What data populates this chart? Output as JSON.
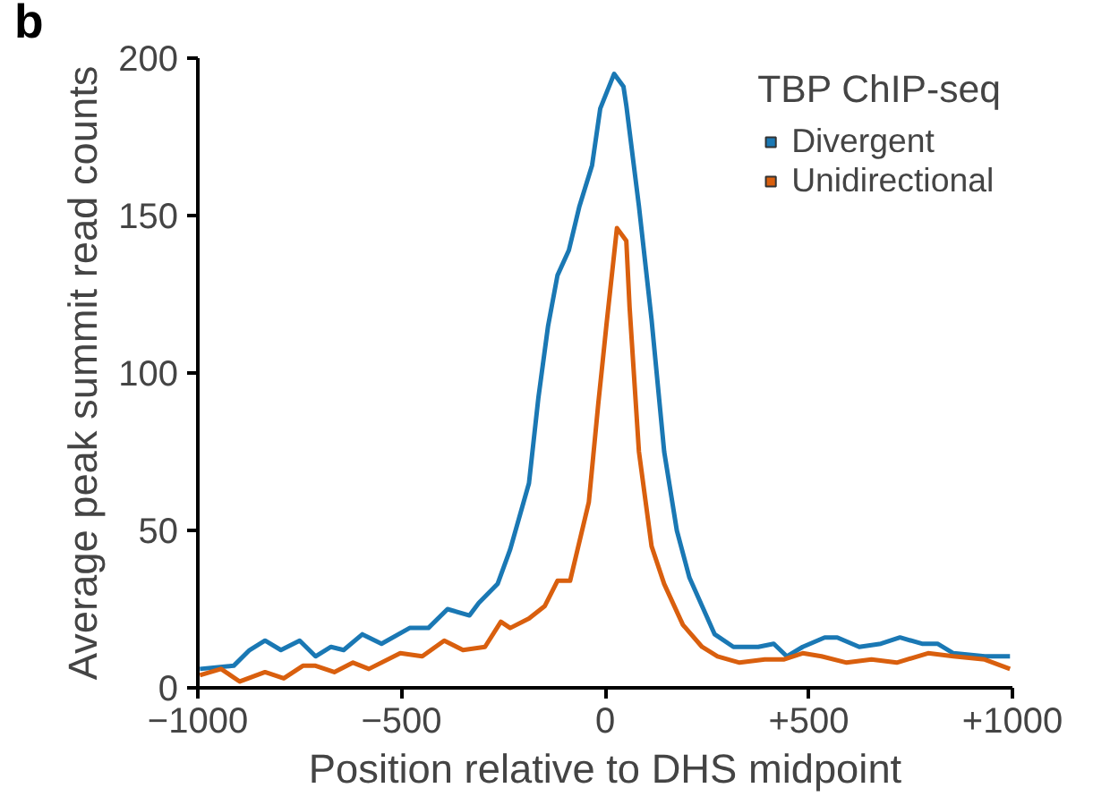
{
  "chart_data": {
    "type": "line",
    "xlabel": "Position relative to DHS midpoint",
    "ylabel": "Average peak summit read counts",
    "legend_title": "TBP ChIP-seq",
    "annotations": [
      "b"
    ],
    "legend": "top right",
    "grid": false,
    "line_style": "solid",
    "xlim": [
      -1000,
      1000
    ],
    "ylim": [
      0,
      200
    ],
    "xticks": [
      {
        "value": -1000,
        "label": "−1000"
      },
      {
        "value": -500,
        "label": "−500"
      },
      0,
      {
        "value": 500,
        "label": "+500"
      },
      {
        "value": 1000,
        "label": "+1000"
      }
    ],
    "yticks": [
      0,
      50,
      100,
      150,
      200
    ],
    "series": [
      {
        "name": "Divergent",
        "color": "#1a78b4",
        "x": [
          -995,
          -912,
          -873,
          -835,
          -796,
          -750,
          -711,
          -673,
          -642,
          -596,
          -549,
          -480,
          -434,
          -387,
          -333,
          -310,
          -264,
          -233,
          -187,
          -164,
          -140,
          -117,
          -89,
          -63,
          -32,
          -12,
          22,
          45,
          52,
          83,
          114,
          145,
          176,
          207,
          238,
          269,
          315,
          376,
          414,
          446,
          485,
          539,
          570,
          624,
          677,
          724,
          778,
          816,
          855,
          932,
          994
        ],
        "values": [
          6,
          7,
          12,
          15,
          12,
          15,
          10,
          13,
          12,
          17,
          14,
          19,
          19,
          25,
          23,
          27,
          33,
          44,
          65,
          92,
          115,
          131,
          139,
          153,
          166,
          184,
          195,
          191,
          185,
          153,
          117,
          75,
          50,
          35,
          26,
          17,
          13,
          13,
          14,
          10,
          13,
          16,
          16,
          13,
          14,
          16,
          14,
          14,
          11,
          10,
          10
        ]
      },
      {
        "name": "Unidirectional",
        "color": "#d95f0e",
        "x": [
          -995,
          -943,
          -897,
          -835,
          -789,
          -742,
          -711,
          -665,
          -619,
          -580,
          -503,
          -449,
          -395,
          -349,
          -295,
          -256,
          -233,
          -187,
          -148,
          -117,
          -86,
          -40,
          -17,
          3,
          29,
          52,
          60,
          83,
          114,
          145,
          191,
          238,
          276,
          330,
          392,
          438,
          485,
          531,
          593,
          654,
          716,
          793,
          855,
          932,
          994
        ],
        "values": [
          4,
          6,
          2,
          5,
          3,
          7,
          7,
          5,
          8,
          6,
          11,
          10,
          15,
          12,
          13,
          21,
          19,
          22,
          26,
          34,
          34,
          59,
          90,
          115,
          146,
          142,
          121,
          75,
          45,
          33,
          20,
          13,
          10,
          8,
          9,
          9,
          11,
          10,
          8,
          9,
          8,
          11,
          10,
          9,
          6
        ]
      }
    ]
  }
}
